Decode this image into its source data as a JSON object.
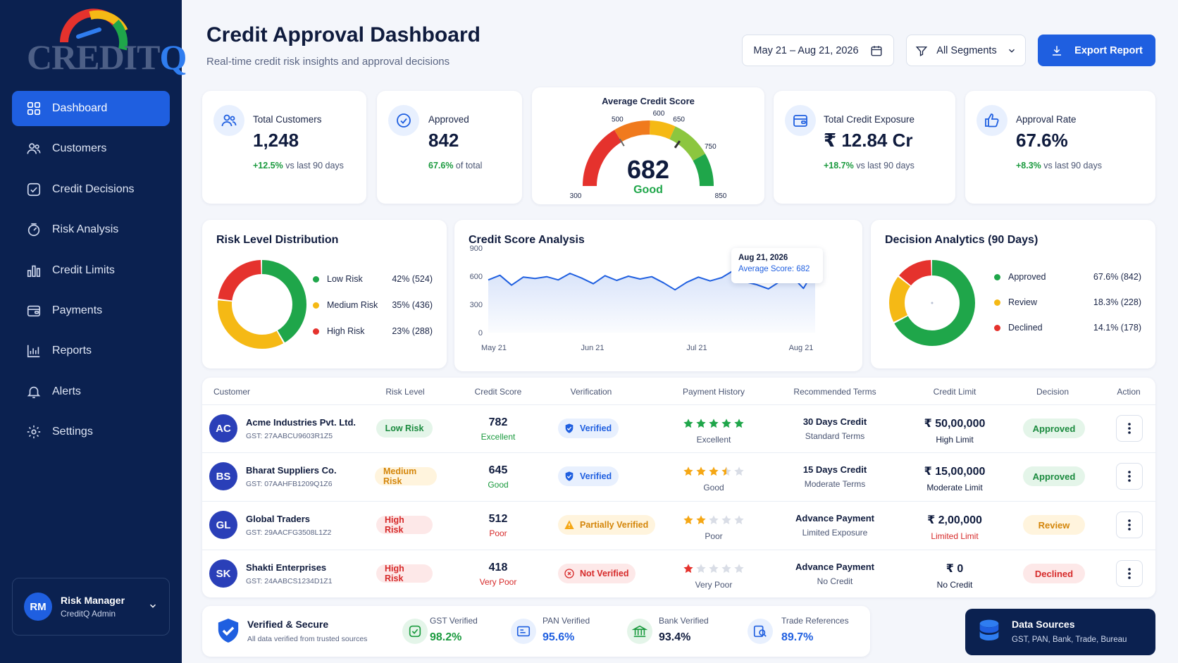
{
  "brand": {
    "logo_text_main": "CREDIT",
    "logo_text_q": "Q"
  },
  "sidebar": {
    "items": [
      {
        "label": "Dashboard"
      },
      {
        "label": "Customers"
      },
      {
        "label": "Credit Decisions"
      },
      {
        "label": "Risk Analysis"
      },
      {
        "label": "Credit Limits"
      },
      {
        "label": "Payments"
      },
      {
        "label": "Reports"
      },
      {
        "label": "Alerts"
      },
      {
        "label": "Settings"
      }
    ],
    "active": "Dashboard",
    "user": {
      "initials": "RM",
      "name": "Risk Manager",
      "role": "CreditQ Admin"
    }
  },
  "header": {
    "title": "Credit Approval Dashboard",
    "subtitle": "Real-time credit risk insights and approval decisions",
    "date_range": "May 21 – Aug 21, 2026",
    "segment": "All Segments",
    "export_label": "Export Report"
  },
  "kpis": {
    "total_customers": {
      "label": "Total Customers",
      "value": "1,248",
      "delta": "+12.5%",
      "delta_text": " vs last 90 days"
    },
    "approved": {
      "label": "Approved",
      "value": "842",
      "delta": "67.6%",
      "delta_text": " of total"
    },
    "exposure": {
      "label": "Total Credit Exposure",
      "value": "₹ 12.84 Cr",
      "delta": "+18.7%",
      "delta_text": " vs last 90 days"
    },
    "approval_rate": {
      "label": "Approval Rate",
      "value": "67.6%",
      "delta": "+8.3%",
      "delta_text": " vs last 90 days"
    }
  },
  "gauge": {
    "title": "Average Credit Score",
    "value": 682,
    "value_text": "682",
    "rating": "Good",
    "min": 300,
    "max": 850,
    "ticks": [
      "300",
      "500",
      "600",
      "650",
      "750",
      "850"
    ]
  },
  "risk_distribution": {
    "title": "Risk Level Distribution",
    "items": [
      {
        "label": "Low Risk",
        "value": "42% (524)",
        "percent": 42,
        "color": "#1fa64a"
      },
      {
        "label": "Medium Risk",
        "value": "35% (436)",
        "percent": 35,
        "color": "#f5b915"
      },
      {
        "label": "High Risk",
        "value": "23% (288)",
        "percent": 23,
        "color": "#e5322d"
      }
    ]
  },
  "credit_score_analysis": {
    "title": "Credit Score Analysis",
    "tooltip_date": "Aug 21, 2026",
    "tooltip_value": "Average Score: 682"
  },
  "chart_data": {
    "type": "area",
    "title": "Credit Score Analysis",
    "x_ticks": [
      "May 21",
      "Jun 21",
      "Jul 21",
      "Aug 21"
    ],
    "y_ticks": [
      "900",
      "600",
      "300",
      "0"
    ],
    "ylim": [
      0,
      900
    ],
    "grid": false,
    "values": [
      560,
      610,
      505,
      590,
      575,
      595,
      560,
      630,
      580,
      520,
      605,
      555,
      600,
      570,
      595,
      530,
      455,
      535,
      590,
      550,
      585,
      660,
      540,
      510,
      465,
      545,
      600,
      470,
      682
    ]
  },
  "decision_analytics": {
    "title": "Decision Analytics (90 Days)",
    "items": [
      {
        "label": "Approved",
        "value": "67.6% (842)",
        "percent": 67.6,
        "color": "#1fa64a"
      },
      {
        "label": "Review",
        "value": "18.3% (228)",
        "percent": 18.3,
        "color": "#f5b915"
      },
      {
        "label": "Declined",
        "value": "14.1% (178)",
        "percent": 14.1,
        "color": "#e5322d"
      }
    ]
  },
  "table": {
    "headers": [
      "Customer",
      "Risk Level",
      "Credit Score",
      "Verification",
      "Payment History",
      "Recommended Terms",
      "Credit Limit",
      "Decision",
      "Action"
    ],
    "rows": [
      {
        "initials": "AC",
        "name": "Acme Industries Pvt. Ltd.",
        "gst": "GST: 27AABCU9603R1Z5",
        "risk": "Low Risk",
        "score": "782",
        "score_label": "Excellent",
        "verification": "Verified",
        "stars": 5,
        "payment": "Excellent",
        "terms": "30 Days Credit",
        "terms_sub": "Standard Terms",
        "limit": "₹ 50,00,000",
        "limit_sub": "High Limit",
        "decision": "Approved"
      },
      {
        "initials": "BS",
        "name": "Bharat Suppliers Co.",
        "gst": "GST: 07AAHFB1209Q1Z6",
        "risk": "Medium Risk",
        "score": "645",
        "score_label": "Good",
        "verification": "Verified",
        "stars": 3.5,
        "payment": "Good",
        "terms": "15 Days Credit",
        "terms_sub": "Moderate Terms",
        "limit": "₹ 15,00,000",
        "limit_sub": "Moderate Limit",
        "decision": "Approved"
      },
      {
        "initials": "GL",
        "name": "Global Traders",
        "gst": "GST: 29AACFG3508L1Z2",
        "risk": "High Risk",
        "score": "512",
        "score_label": "Poor",
        "verification": "Partially Verified",
        "stars": 2,
        "payment": "Poor",
        "terms": "Advance Payment",
        "terms_sub": "Limited Exposure",
        "limit": "₹ 2,00,000",
        "limit_sub": "Limited Limit",
        "decision": "Review"
      },
      {
        "initials": "SK",
        "name": "Shakti Enterprises",
        "gst": "GST: 24AABCS1234D1Z1",
        "risk": "High Risk",
        "score": "418",
        "score_label": "Very Poor",
        "verification": "Not Verified",
        "stars": 1,
        "payment": "Very Poor",
        "terms": "Advance Payment",
        "terms_sub": "No Credit",
        "limit": "₹ 0",
        "limit_sub": "No Credit",
        "decision": "Declined"
      }
    ]
  },
  "footer": {
    "secure_title": "Verified & Secure",
    "secure_sub": "All data verified from trusted sources",
    "metrics": [
      {
        "label": "GST Verified",
        "value": "98.2%"
      },
      {
        "label": "PAN Verified",
        "value": "95.6%"
      },
      {
        "label": "Bank Verified",
        "value": "93.4%"
      },
      {
        "label": "Trade References",
        "value": "89.7%"
      }
    ],
    "sources_title": "Data Sources",
    "sources_sub": "GST, PAN, Bank, Trade, Bureau"
  }
}
